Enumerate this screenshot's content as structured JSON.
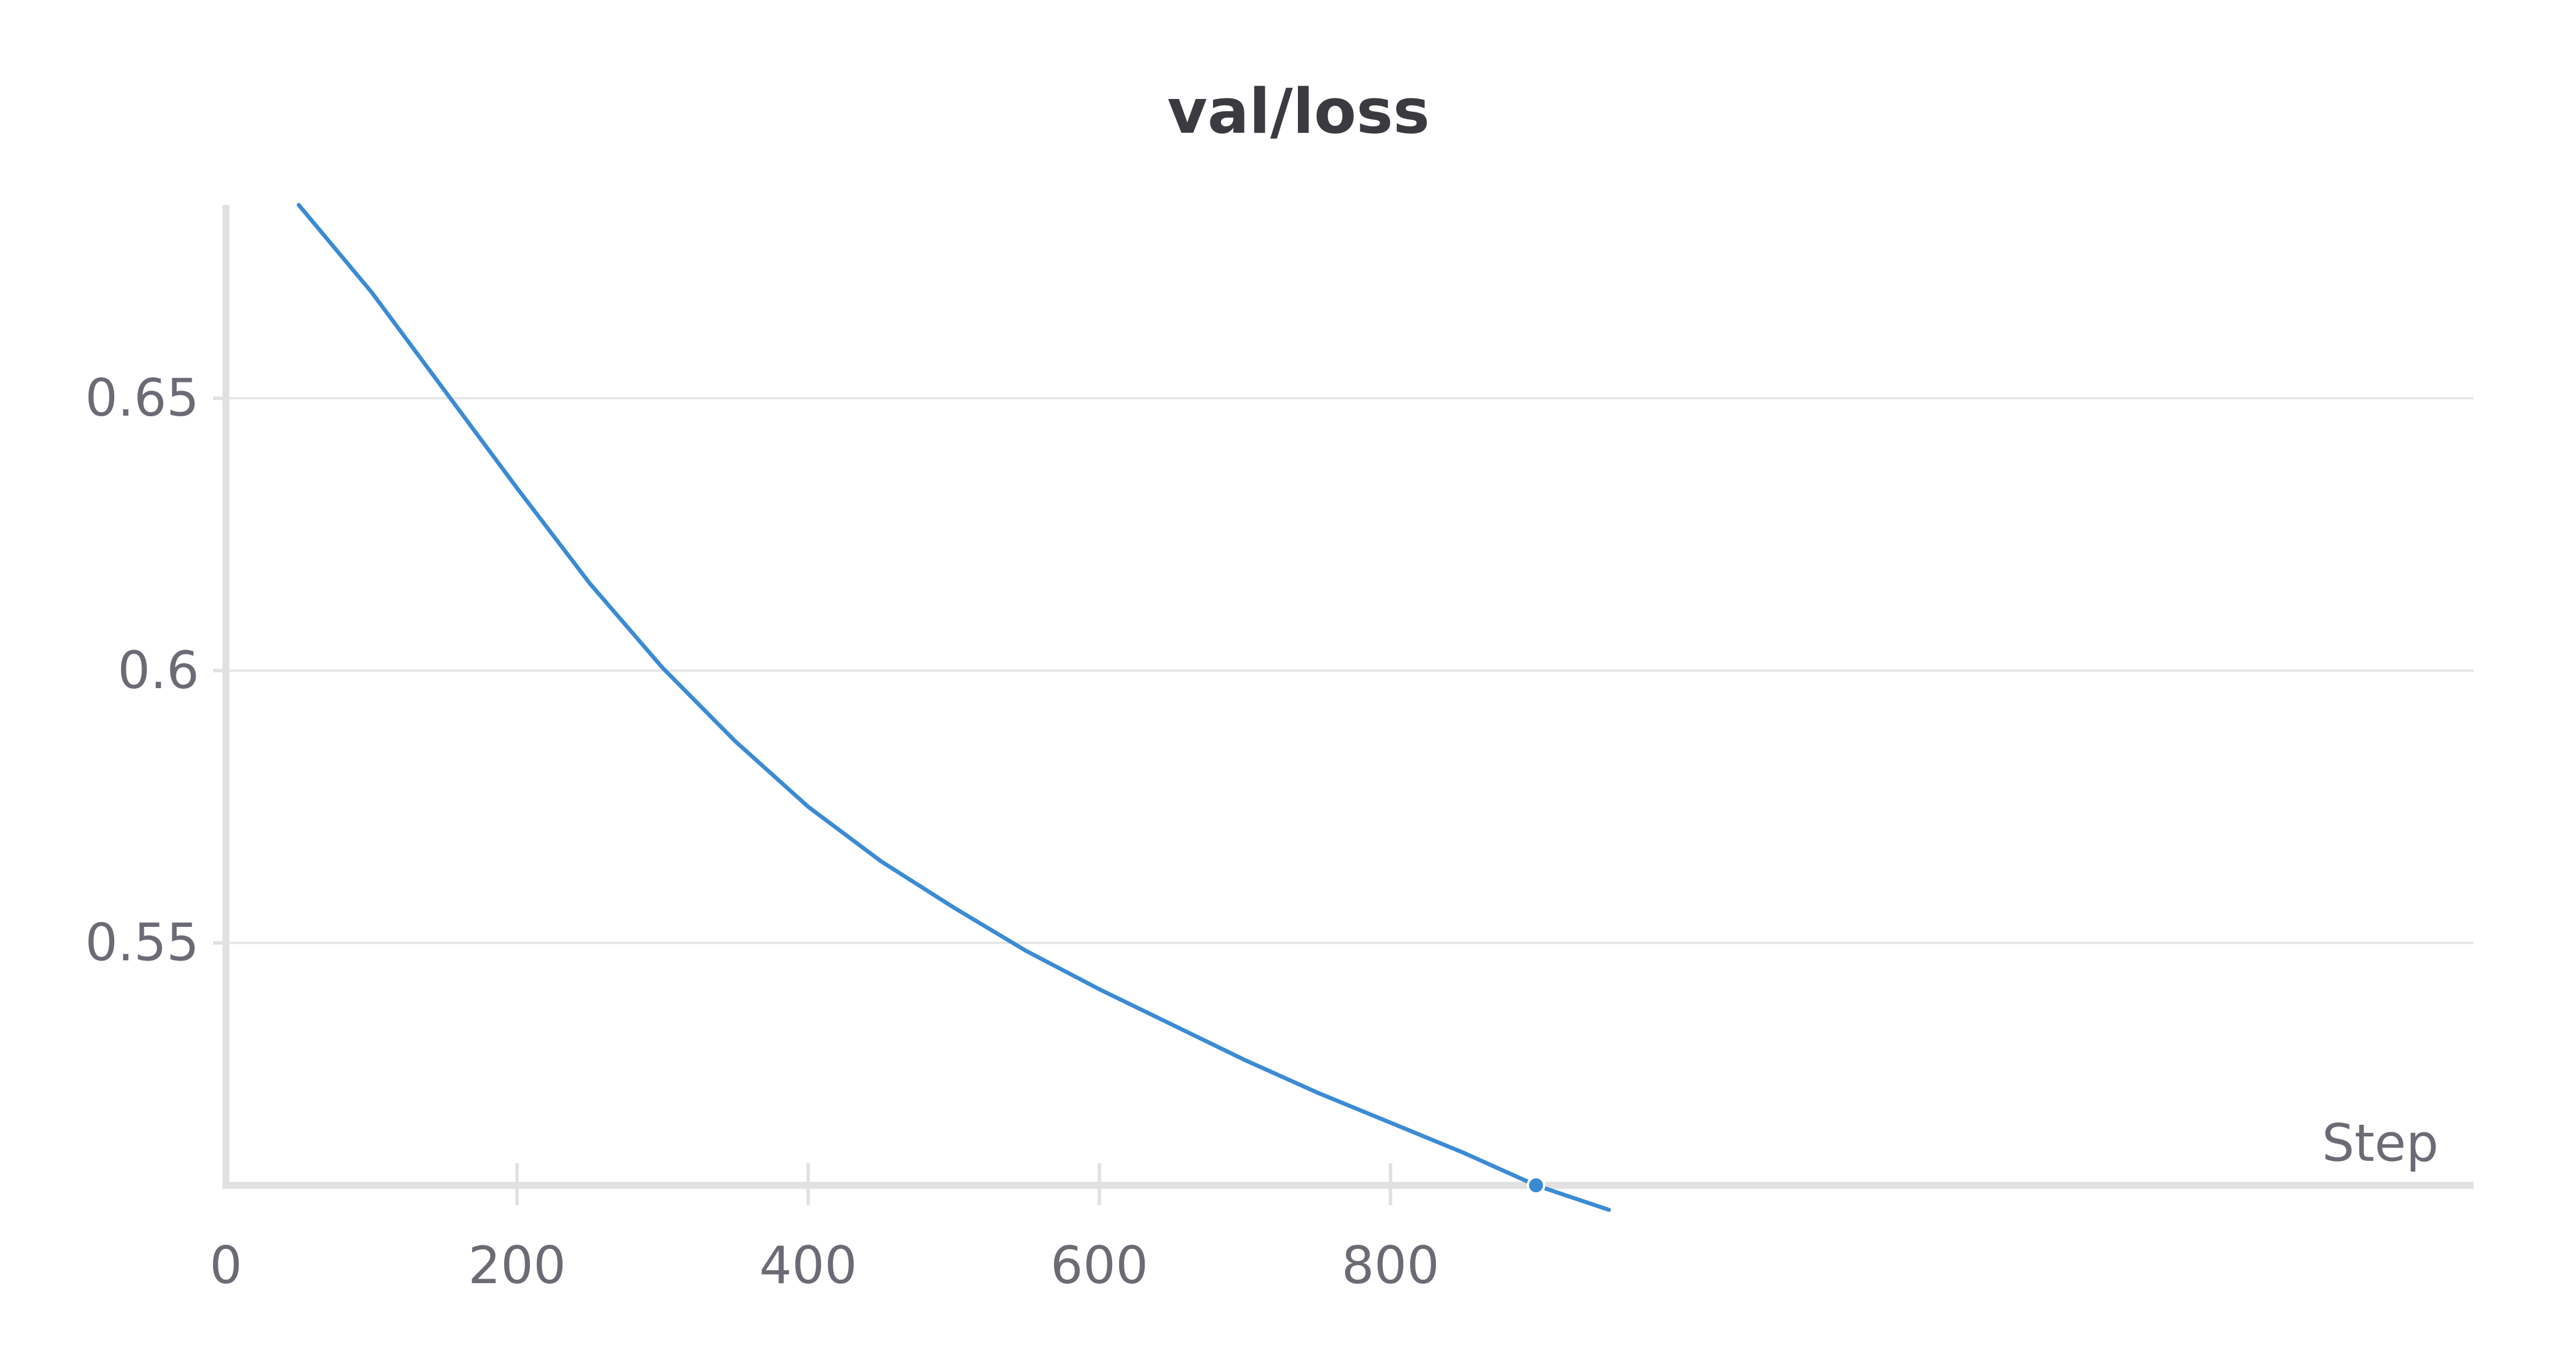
{
  "chart_data": {
    "type": "line",
    "title": "val/loss",
    "xlabel": "Step",
    "ylabel": "",
    "xlim": [
      0,
      943
    ],
    "ylim": [
      0.5055,
      0.6855
    ],
    "x_ticks": [
      0,
      200,
      400,
      600,
      800
    ],
    "x_tick_labels": [
      "0",
      "200",
      "400",
      "600",
      "800"
    ],
    "y_ticks": [
      0.55,
      0.6,
      0.65
    ],
    "y_tick_labels": [
      "0.55",
      "0.6",
      "0.65"
    ],
    "grid": "horizontal",
    "series": [
      {
        "x": [
          50,
          100,
          150,
          200,
          250,
          300,
          350,
          400,
          450,
          500,
          550,
          600,
          650,
          700,
          750,
          800,
          850,
          900,
          950
        ],
        "y": [
          0.6855,
          0.6695,
          0.6515,
          0.6335,
          0.616,
          0.6005,
          0.587,
          0.575,
          0.565,
          0.5565,
          0.5485,
          0.5415,
          0.535,
          0.5285,
          0.5225,
          0.517,
          0.5115,
          0.5055,
          0.501
        ]
      }
    ],
    "colors": {
      "line": "#3b8bd4",
      "grid": "#e6e6e6",
      "axis": "#e1e1e1",
      "text": "#6b6b76",
      "title": "#3a3a40"
    }
  }
}
